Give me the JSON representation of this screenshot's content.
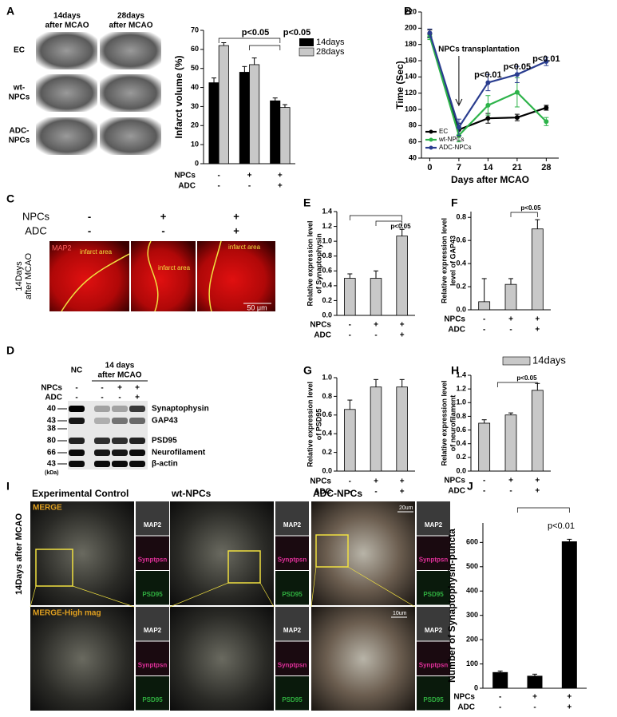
{
  "panel_labels": [
    "A",
    "B",
    "C",
    "D",
    "E",
    "F",
    "G",
    "H",
    "I",
    "J"
  ],
  "panel_a": {
    "columns": [
      [
        "14days",
        "after MCAO"
      ],
      [
        "28days",
        "after MCAO"
      ]
    ],
    "rows": [
      [
        "EC"
      ],
      [
        "wt-",
        "NPCs"
      ],
      [
        "ADC-",
        "NPCs"
      ]
    ]
  },
  "panel_c": {
    "conditions": [
      {
        "name": "NPCs",
        "signs": [
          "-",
          "+",
          "+"
        ]
      },
      {
        "name": "ADC",
        "signs": [
          "-",
          "-",
          "+"
        ]
      }
    ],
    "side_label": [
      "14Days",
      "after MCAO"
    ],
    "stain": "MAP2",
    "region": "infarct area",
    "scale_bar": "50 μm"
  },
  "panel_d": {
    "control": "NC",
    "group": [
      "14 days",
      "after MCAO"
    ],
    "conditions": [
      {
        "name": "NPCs",
        "signs": [
          "-",
          "-",
          "+",
          "+"
        ]
      },
      {
        "name": "ADC",
        "signs": [
          "-",
          "-",
          "-",
          "+"
        ]
      }
    ],
    "bands": [
      {
        "mw": [
          "40"
        ],
        "name": "Synaptophysin"
      },
      {
        "mw": [
          "43",
          "38"
        ],
        "name": "GAP43"
      },
      {
        "mw": [
          "80"
        ],
        "name": "PSD95"
      },
      {
        "mw": [
          "66"
        ],
        "name": "Neurofilament"
      },
      {
        "mw": [
          "43"
        ],
        "name": "β-actin"
      }
    ],
    "unit": "(kDa)"
  },
  "panel_i": {
    "columns": [
      "Experimental Control",
      "wt-NPCs",
      "ADC-NPCs"
    ],
    "side_label": "14Days after MCAO",
    "channels": [
      "MAP2",
      "Synptpsn",
      "PSD95"
    ],
    "merge": "MERGE",
    "merge_high": "MERGE-High mag",
    "scale_bars": [
      "20um",
      "10um"
    ]
  },
  "chart_data": [
    {
      "type": "bar",
      "ylabel": "Infarct volume (%)",
      "ylim": [
        0,
        70
      ],
      "yticks": [
        0,
        10,
        20,
        30,
        40,
        50,
        60,
        70
      ],
      "series": [
        {
          "name": "14days",
          "color": "#000000",
          "values": [
            42.5,
            48,
            33
          ],
          "errors": [
            2.5,
            3,
            1.5
          ]
        },
        {
          "name": "28days",
          "color": "#c8c8c8",
          "values": [
            62,
            52,
            29.5
          ],
          "errors": [
            1.5,
            3.5,
            1.5
          ]
        }
      ],
      "conditions": [
        {
          "name": "NPCs",
          "signs": [
            "-",
            "+",
            "+"
          ]
        },
        {
          "name": "ADC",
          "signs": [
            "-",
            "-",
            "+"
          ]
        }
      ],
      "annotations": [
        "p<0.05",
        "p<0.05"
      ]
    },
    {
      "type": "line",
      "xlabel": "Days after MCAO",
      "ylabel": "Time (Sec)",
      "x": [
        0,
        7,
        14,
        21,
        28
      ],
      "xlim": [
        -2,
        31
      ],
      "xticks": [
        0,
        7,
        14,
        21,
        28
      ],
      "ylim": [
        40,
        220
      ],
      "yticks": [
        40,
        60,
        80,
        100,
        120,
        140,
        160,
        180,
        200,
        220
      ],
      "series": [
        {
          "name": "EC",
          "color": "#000000",
          "values": [
            193,
            75,
            89,
            90,
            102
          ],
          "errors": [
            5,
            8,
            6,
            4,
            3
          ]
        },
        {
          "name": "wt-NPCs",
          "color": "#2db34a",
          "values": [
            190,
            68,
            105,
            121,
            85
          ],
          "errors": [
            4,
            8,
            12,
            18,
            5
          ]
        },
        {
          "name": "ADC-NPCs",
          "color": "#2a3d8f",
          "values": [
            194,
            78,
            133,
            143,
            159
          ],
          "errors": [
            5,
            10,
            10,
            10,
            5
          ]
        }
      ],
      "annotations": [
        "NPCs transplantation",
        "p<0.01",
        "p<0.05",
        "p<0.01"
      ]
    },
    {
      "type": "bar",
      "ylabel": [
        "Relative expression level",
        "of Synaptophysin"
      ],
      "ylim": [
        0,
        1.4
      ],
      "yticks": [
        {
          "value": 0,
          "label": "0.0"
        },
        0.2,
        0.4,
        0.6,
        0.8,
        {
          "value": 1,
          "label": "1.0"
        },
        1.2,
        1.4
      ],
      "color": "#c8c8c8",
      "values": [
        0.5,
        0.5,
        1.07
      ],
      "errors": [
        0.06,
        0.1,
        0.09
      ],
      "conditions": [
        {
          "name": "NPCs",
          "signs": [
            "-",
            "+",
            "+"
          ]
        },
        {
          "name": "ADC",
          "signs": [
            "-",
            "-",
            "+"
          ]
        }
      ],
      "annotations": [
        "p<0.05"
      ]
    },
    {
      "type": "bar",
      "ylabel": [
        "Relative expression level",
        "level of GAP43"
      ],
      "ylim": [
        0,
        0.85
      ],
      "yticks": [
        {
          "value": 0,
          "label": "0.0"
        },
        0.2,
        0.4,
        0.6,
        0.8
      ],
      "color": "#c8c8c8",
      "values": [
        0.07,
        0.22,
        0.7
      ],
      "errors": [
        0.2,
        0.05,
        0.08
      ],
      "conditions": [
        {
          "name": "NPCs",
          "signs": [
            "-",
            "+",
            "+"
          ]
        },
        {
          "name": "ADC",
          "signs": [
            "-",
            "-",
            "+"
          ]
        }
      ],
      "annotations": [
        "p<0.05"
      ]
    },
    {
      "type": "bar",
      "ylabel": [
        "Relative expression level",
        "of PSD95"
      ],
      "ylim": [
        0,
        1
      ],
      "yticks": [
        {
          "value": 0,
          "label": "0.0"
        },
        0.2,
        0.4,
        0.6,
        0.8,
        {
          "value": 1,
          "label": "1.0"
        }
      ],
      "color": "#c8c8c8",
      "values": [
        0.66,
        0.9,
        0.9
      ],
      "errors": [
        0.1,
        0.08,
        0.08
      ],
      "conditions": [
        {
          "name": "NPCs",
          "signs": [
            "-",
            "+",
            "+"
          ]
        },
        {
          "name": "ADC",
          "signs": [
            "-",
            "-",
            "+"
          ]
        }
      ]
    },
    {
      "type": "bar",
      "ylabel": [
        "Relative expression level",
        "of neurofilament"
      ],
      "ylim": [
        0,
        1.4
      ],
      "yticks": [
        {
          "value": 0,
          "label": "0.0"
        },
        0.2,
        0.4,
        0.6,
        0.8,
        {
          "value": 1,
          "label": "1.0"
        },
        1.2,
        1.4
      ],
      "series": [
        {
          "name": "14days",
          "color": "#c8c8c8",
          "values": [
            0.7,
            0.82,
            1.18
          ],
          "errors": [
            0.05,
            0.03,
            0.1
          ]
        }
      ],
      "conditions": [
        {
          "name": "NPCs",
          "signs": [
            "-",
            "+",
            "+"
          ]
        },
        {
          "name": "ADC",
          "signs": [
            "-",
            "-",
            "+"
          ]
        }
      ],
      "annotations": [
        "p<0.05"
      ]
    },
    {
      "type": "bar",
      "ylabel": "Number of Synaptophysin-puncta",
      "ylim": [
        0,
        680
      ],
      "yticks": [
        0,
        100,
        200,
        300,
        400,
        500,
        600
      ],
      "color": "#000000",
      "values": [
        65,
        50,
        603
      ],
      "errors": [
        6,
        8,
        10
      ],
      "conditions": [
        {
          "name": "NPCs",
          "signs": [
            "-",
            "+",
            "+"
          ]
        },
        {
          "name": "ADC",
          "signs": [
            "-",
            "-",
            "+"
          ]
        }
      ],
      "annotations": [
        "p<0.01"
      ]
    }
  ]
}
